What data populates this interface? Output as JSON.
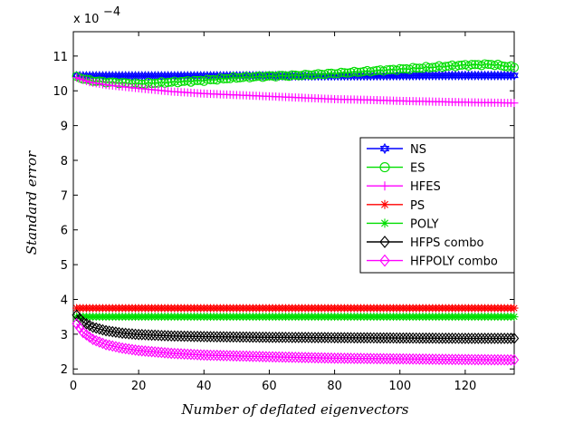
{
  "chart_data": {
    "type": "line",
    "title": "",
    "xlabel": "Number of deflated eigenvectors",
    "ylabel": "Standard error",
    "y_scale_label": "x 10",
    "y_scale_exponent": "−4",
    "xlim": [
      0,
      135
    ],
    "ylim": [
      1.85,
      11.7
    ],
    "xticks": [
      0,
      20,
      40,
      60,
      80,
      100,
      120
    ],
    "yticks": [
      2,
      3,
      4,
      5,
      6,
      7,
      8,
      9,
      10,
      11
    ],
    "legend_position": "right",
    "series": [
      {
        "name": "NS",
        "color": "#0000ff",
        "marker": "hexagram",
        "points": [
          [
            1,
            10.43
          ],
          [
            30,
            10.43
          ],
          [
            60,
            10.43
          ],
          [
            90,
            10.43
          ],
          [
            110,
            10.44
          ],
          [
            135,
            10.44
          ]
        ]
      },
      {
        "name": "ES",
        "color": "#00dd00",
        "marker": "circle",
        "points": [
          [
            1,
            10.4
          ],
          [
            5,
            10.3
          ],
          [
            10,
            10.25
          ],
          [
            20,
            10.2
          ],
          [
            30,
            10.25
          ],
          [
            40,
            10.3
          ],
          [
            50,
            10.38
          ],
          [
            60,
            10.42
          ],
          [
            70,
            10.45
          ],
          [
            80,
            10.5
          ],
          [
            90,
            10.56
          ],
          [
            100,
            10.62
          ],
          [
            110,
            10.68
          ],
          [
            120,
            10.74
          ],
          [
            128,
            10.76
          ],
          [
            135,
            10.68
          ]
        ]
      },
      {
        "name": "HFES",
        "color": "#ff00ff",
        "marker": "plus",
        "points": [
          [
            1,
            10.38
          ],
          [
            5,
            10.25
          ],
          [
            10,
            10.17
          ],
          [
            20,
            10.07
          ],
          [
            30,
            9.98
          ],
          [
            40,
            9.92
          ],
          [
            50,
            9.88
          ],
          [
            60,
            9.84
          ],
          [
            70,
            9.8
          ],
          [
            80,
            9.76
          ],
          [
            90,
            9.74
          ],
          [
            100,
            9.71
          ],
          [
            110,
            9.69
          ],
          [
            120,
            9.67
          ],
          [
            135,
            9.65
          ]
        ]
      },
      {
        "name": "PS",
        "color": "#ff0000",
        "marker": "asterisk",
        "points": [
          [
            1,
            3.75
          ],
          [
            60,
            3.75
          ],
          [
            135,
            3.75
          ]
        ]
      },
      {
        "name": "POLY",
        "color": "#00dd00",
        "marker": "asterisk",
        "points": [
          [
            1,
            3.5
          ],
          [
            60,
            3.5
          ],
          [
            135,
            3.5
          ]
        ]
      },
      {
        "name": "HFPS combo",
        "color": "#000000",
        "marker": "diamond",
        "points": [
          [
            1,
            3.55
          ],
          [
            3,
            3.35
          ],
          [
            6,
            3.2
          ],
          [
            10,
            3.1
          ],
          [
            15,
            3.03
          ],
          [
            20,
            2.99
          ],
          [
            30,
            2.95
          ],
          [
            40,
            2.93
          ],
          [
            60,
            2.91
          ],
          [
            80,
            2.9
          ],
          [
            100,
            2.89
          ],
          [
            120,
            2.88
          ],
          [
            135,
            2.88
          ]
        ]
      },
      {
        "name": "HFPOLY combo",
        "color": "#ff00ff",
        "marker": "diamond",
        "points": [
          [
            1,
            3.3
          ],
          [
            3,
            3.05
          ],
          [
            6,
            2.85
          ],
          [
            10,
            2.7
          ],
          [
            15,
            2.6
          ],
          [
            20,
            2.53
          ],
          [
            30,
            2.45
          ],
          [
            40,
            2.4
          ],
          [
            60,
            2.35
          ],
          [
            80,
            2.31
          ],
          [
            100,
            2.29
          ],
          [
            120,
            2.27
          ],
          [
            135,
            2.26
          ]
        ]
      }
    ]
  }
}
